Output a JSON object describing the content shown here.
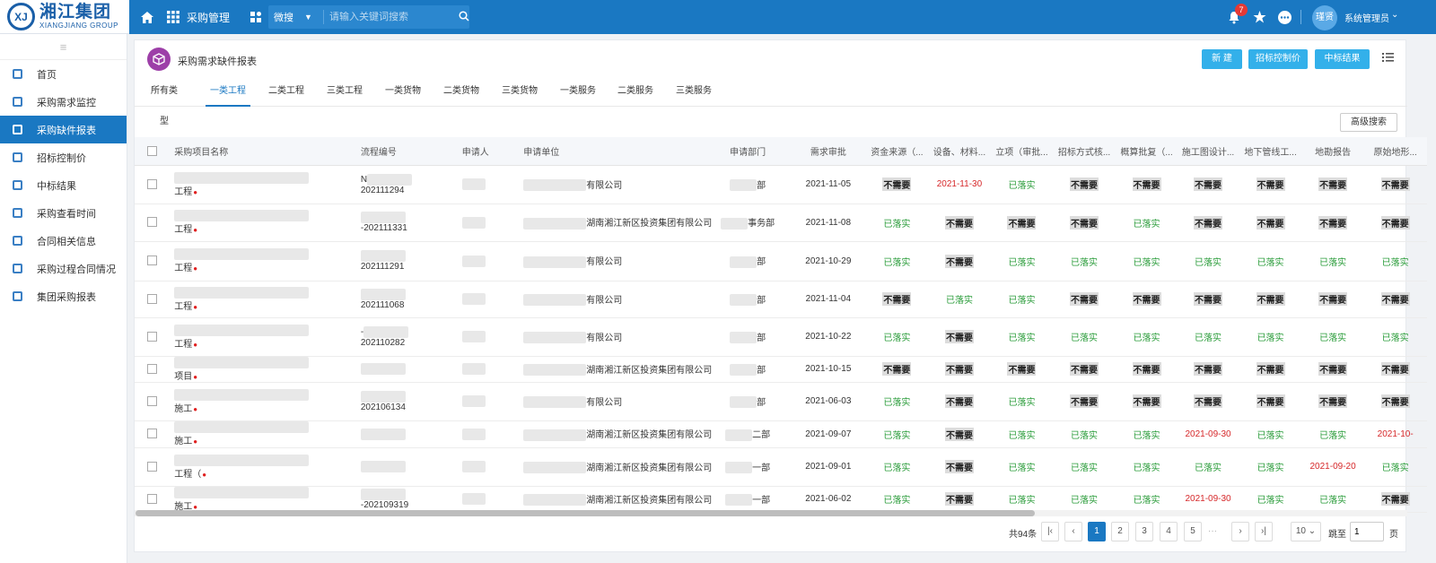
{
  "logo": {
    "cn": "湘江集团",
    "en": "XIANGJIANG GROUP"
  },
  "topbar": {
    "module": "采购管理",
    "search_scope": "微搜",
    "search_placeholder": "请输入关键词搜索",
    "notif_count": "7",
    "avatar_text": "瑾贤",
    "user_name": "系统管理员"
  },
  "sidebar": {
    "items": [
      "首页",
      "采购需求监控",
      "采购缺件报表",
      "招标控制价",
      "中标结果",
      "采购查看时间",
      "合同相关信息",
      "采购过程合同情况",
      "集团采购报表"
    ],
    "active_index": 2
  },
  "page": {
    "title": "采购需求缺件报表",
    "buttons": [
      "新 建",
      "招标控制价",
      "中标结果"
    ],
    "advanced_search": "高级搜索"
  },
  "tabs": [
    "所有类型",
    "一类工程",
    "二类工程",
    "三类工程",
    "一类货物",
    "二类货物",
    "三类货物",
    "一类服务",
    "二类服务",
    "三类服务"
  ],
  "active_tab": 1,
  "table": {
    "columns": [
      "采购项目名称",
      "流程编号",
      "申请人",
      "申请单位",
      "申请部门",
      "需求审批",
      "资金来源（...",
      "设备、材料...",
      "立项（审批...",
      "招标方式核...",
      "概算批复（...",
      "施工图设计...",
      "地下管线工...",
      "地勘报告",
      "原始地形..."
    ],
    "rows": [
      {
        "name": "工程",
        "code1": "N",
        "code": "202111294",
        "unit": "有限公司",
        "dept": "部",
        "date": "2021-11-05",
        "s": [
          "不需要",
          "2021-11-30",
          "已落实",
          "不需要",
          "不需要",
          "不需要",
          "不需要",
          "不需要",
          "不需要"
        ]
      },
      {
        "name": "工程",
        "code1": "",
        "code": "-202111331",
        "unit": "湖南湘江新区投资集团有限公司",
        "dept": "事务部",
        "date": "2021-11-08",
        "s": [
          "已落实",
          "不需要",
          "不需要",
          "不需要",
          "已落实",
          "不需要",
          "不需要",
          "不需要",
          "不需要"
        ]
      },
      {
        "name": "工程",
        "code1": "",
        "code": "202111291",
        "unit": "有限公司",
        "dept": "部",
        "date": "2021-10-29",
        "s": [
          "已落实",
          "不需要",
          "已落实",
          "已落实",
          "已落实",
          "已落实",
          "已落实",
          "已落实",
          "已落实"
        ]
      },
      {
        "name": "工程",
        "code1": "",
        "code": "202111068",
        "unit": "有限公司",
        "dept": "部",
        "date": "2021-11-04",
        "s": [
          "不需要",
          "已落实",
          "已落实",
          "不需要",
          "不需要",
          "不需要",
          "不需要",
          "不需要",
          "不需要"
        ]
      },
      {
        "name": "工程",
        "code1": "-",
        "code": "202110282",
        "unit": "有限公司",
        "dept": "部",
        "date": "2021-10-22",
        "s": [
          "已落实",
          "不需要",
          "已落实",
          "已落实",
          "已落实",
          "已落实",
          "已落实",
          "已落实",
          "已落实"
        ]
      },
      {
        "name": "项目",
        "code1": "",
        "code": "",
        "unit": "湖南湘江新区投资集团有限公司",
        "dept": "部",
        "date": "2021-10-15",
        "s": [
          "不需要",
          "不需要",
          "不需要",
          "不需要",
          "不需要",
          "不需要",
          "不需要",
          "不需要",
          "不需要"
        ]
      },
      {
        "name": "施工",
        "code1": "",
        "code": "202106134",
        "unit": "有限公司",
        "dept": "部",
        "date": "2021-06-03",
        "s": [
          "已落实",
          "不需要",
          "已落实",
          "不需要",
          "不需要",
          "不需要",
          "不需要",
          "不需要",
          "不需要"
        ]
      },
      {
        "name": "施工",
        "code1": "",
        "code": "",
        "unit": "湖南湘江新区投资集团有限公司",
        "dept": "二部",
        "date": "2021-09-07",
        "s": [
          "已落实",
          "不需要",
          "已落实",
          "已落实",
          "已落实",
          "2021-09-30",
          "已落实",
          "已落实",
          "2021-10-"
        ]
      },
      {
        "name": "工程（",
        "code1": "",
        "code": "",
        "unit": "湖南湘江新区投资集团有限公司",
        "dept": "一部",
        "date": "2021-09-01",
        "s": [
          "已落实",
          "不需要",
          "已落实",
          "已落实",
          "已落实",
          "已落实",
          "已落实",
          "2021-09-20",
          "已落实"
        ]
      },
      {
        "name": "施工",
        "code1": "",
        "code": "-202109319",
        "unit": "湖南湘江新区投资集团有限公司",
        "dept": "一部",
        "date": "2021-06-02",
        "s": [
          "已落实",
          "不需要",
          "已落实",
          "已落实",
          "已落实",
          "2021-09-30",
          "已落实",
          "已落实",
          "不需要"
        ]
      }
    ]
  },
  "pager": {
    "total": "共94条",
    "pages": [
      "1",
      "2",
      "3",
      "4",
      "5"
    ],
    "ellipsis": "···",
    "per_page": "10",
    "goto_label": "跳至",
    "page_value": "1",
    "page_suffix": "页"
  },
  "colors": {
    "primary": "#1a78c2",
    "accent": "#33b0ea",
    "ok": "#2a9c3a",
    "red": "#d6282a"
  }
}
